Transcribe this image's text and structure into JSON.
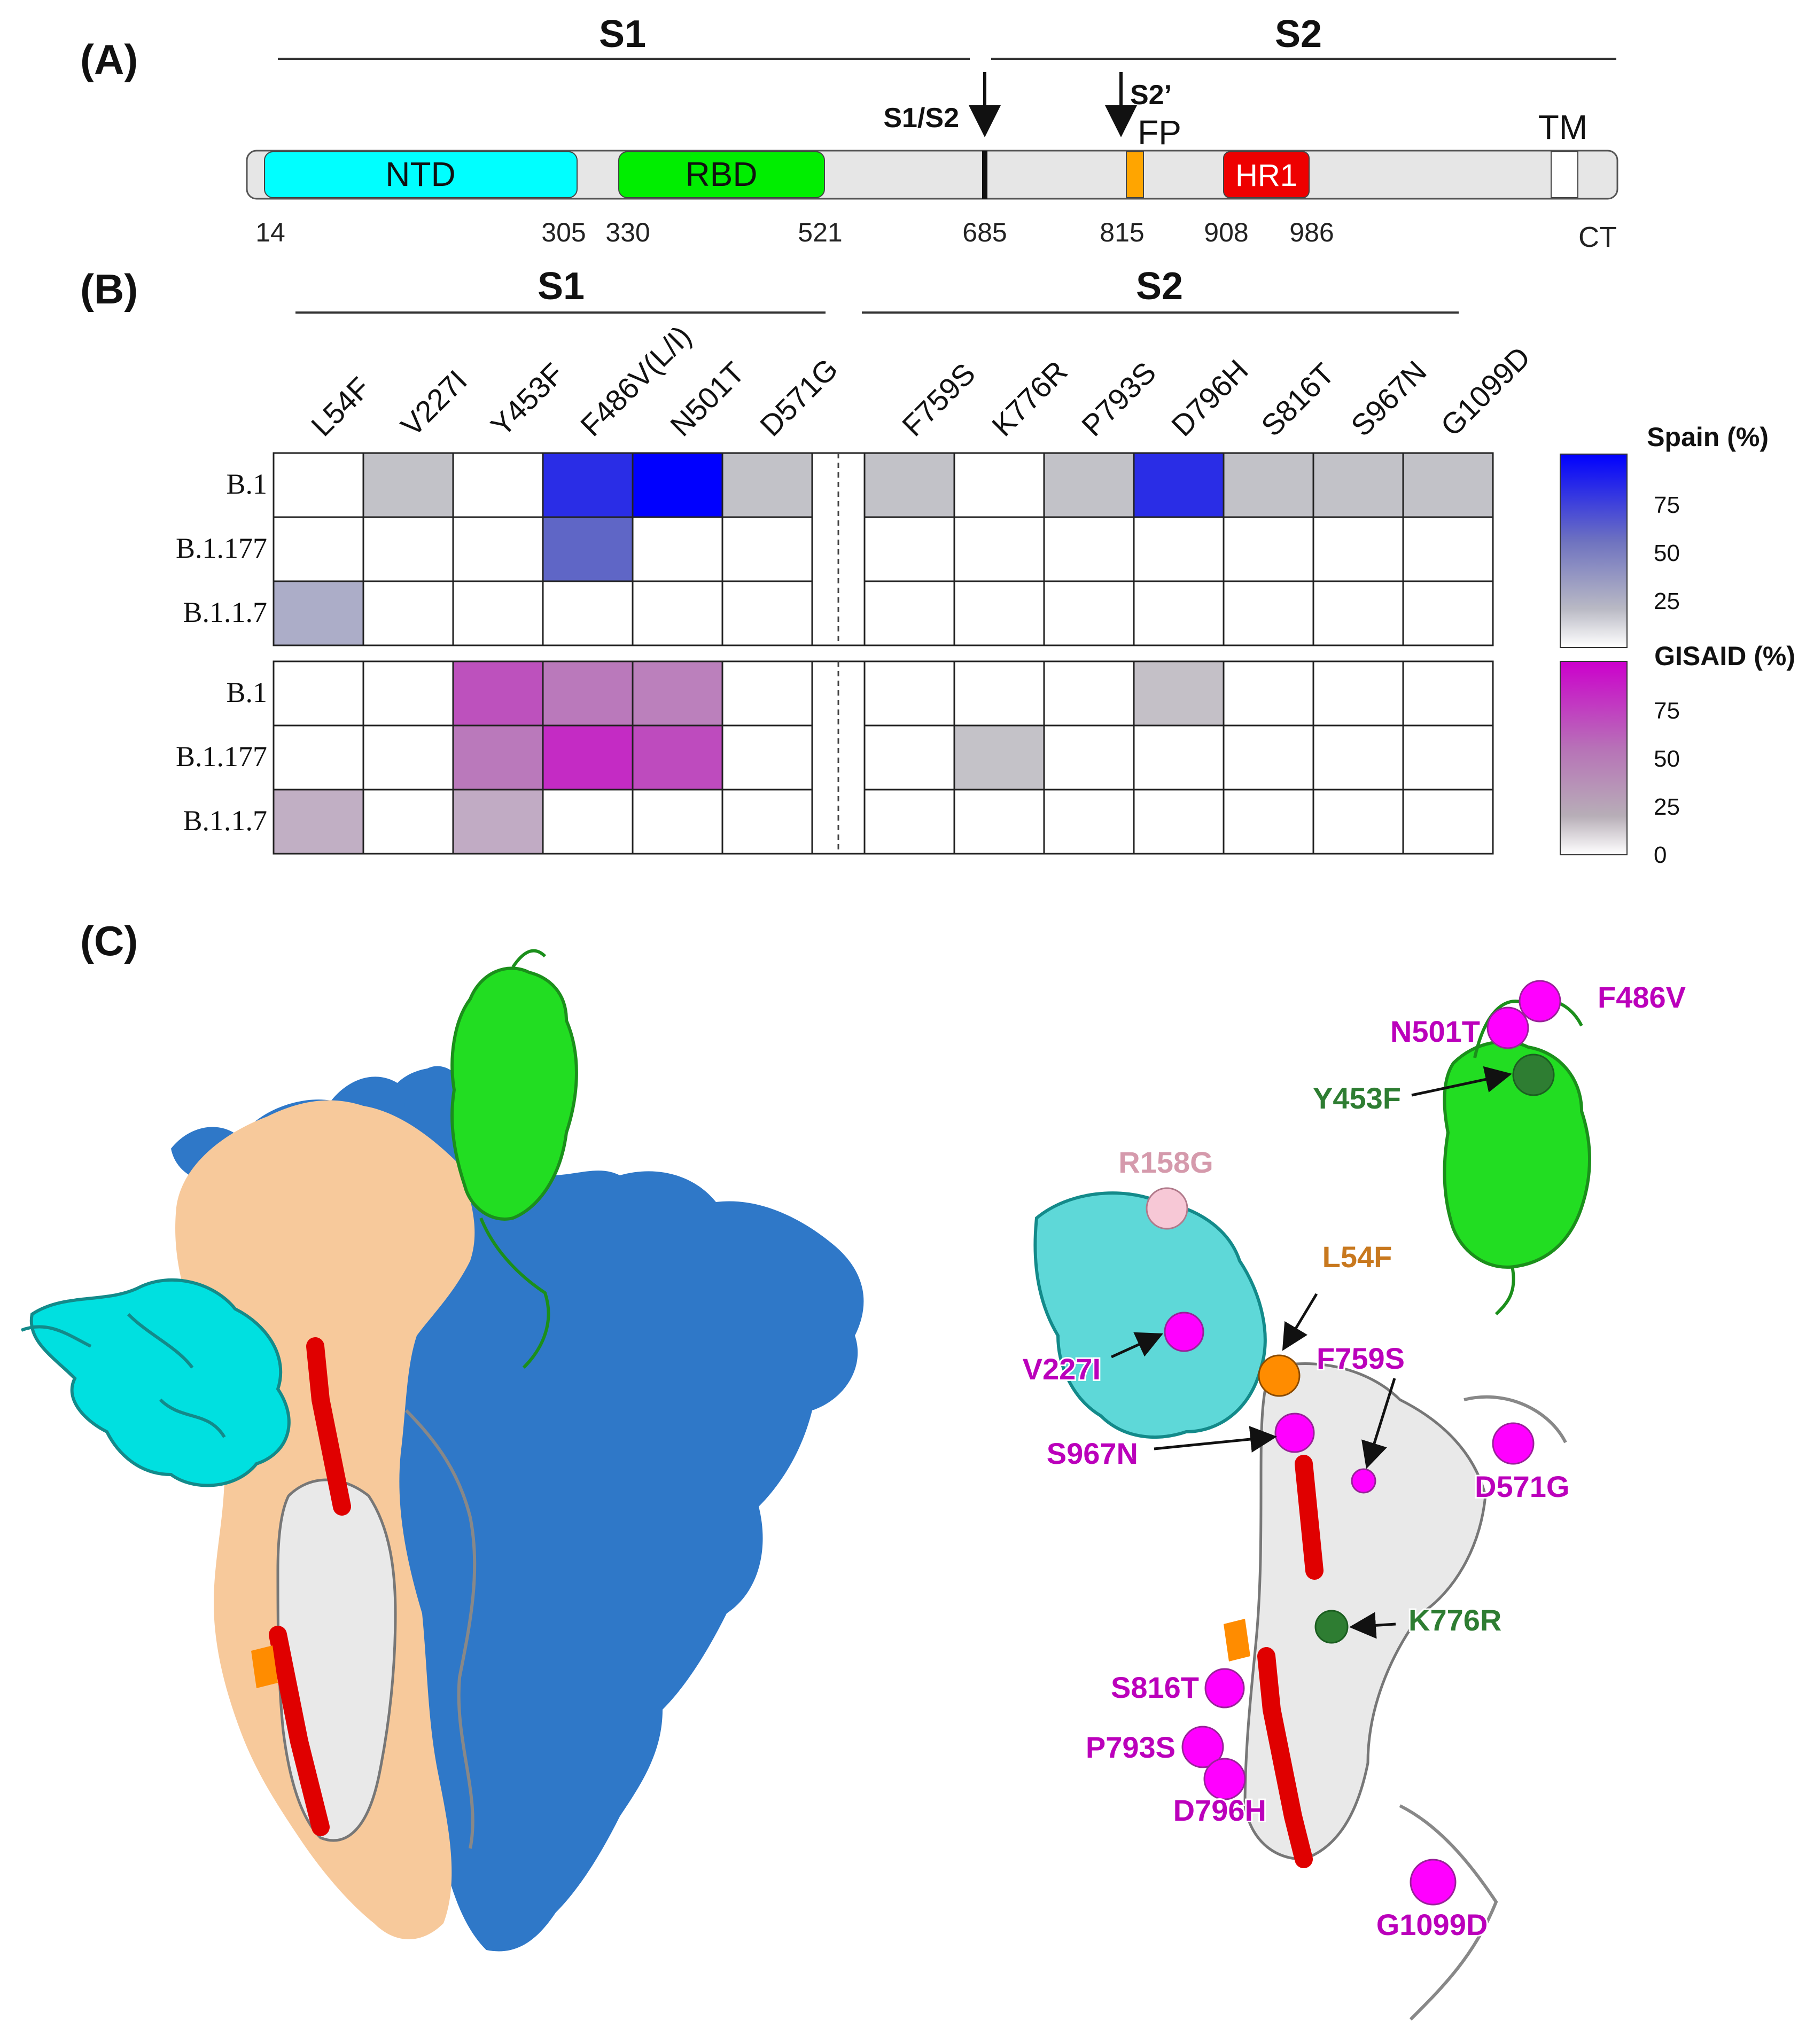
{
  "panels": {
    "a": "(A)",
    "b": "(B)",
    "c": "(C)"
  },
  "domain_map": {
    "segments": [
      "S1",
      "S2"
    ],
    "cleavage": [
      "S1/S2",
      "S2’"
    ],
    "domains": [
      "NTD",
      "RBD",
      "FP",
      "HR1",
      "TM"
    ],
    "positions": [
      "14",
      "305",
      "330",
      "521",
      "685",
      "815",
      "908",
      "986"
    ],
    "ct": "CT"
  },
  "heatmap": {
    "segments": [
      "S1",
      "S2"
    ],
    "columns": [
      "L54F",
      "V227I",
      "Y453F",
      "F486V(L/I)",
      "N501T",
      "D571G",
      "F759S",
      "K776R",
      "P793S",
      "D796H",
      "S816T",
      "S967N",
      "G1099D"
    ],
    "rows": [
      "B.1",
      "B.1.177",
      "B.1.1.7"
    ],
    "spain": [
      [
        0,
        1,
        0,
        78,
        100,
        1,
        1,
        0,
        1,
        78,
        1,
        1,
        1
      ],
      [
        0,
        0,
        0,
        50,
        0,
        0,
        0,
        0,
        0,
        0,
        0,
        0,
        0
      ],
      [
        12,
        0,
        0,
        0,
        0,
        0,
        0,
        0,
        0,
        0,
        0,
        0,
        0
      ]
    ],
    "gisaid": [
      [
        0,
        0,
        62,
        42,
        38,
        0,
        0,
        0,
        0,
        2,
        0,
        0,
        0
      ],
      [
        0,
        0,
        42,
        80,
        65,
        0,
        0,
        1,
        0,
        0,
        0,
        0,
        0
      ],
      [
        12,
        0,
        14,
        0,
        0,
        0,
        0,
        0,
        0,
        0,
        0,
        0,
        0
      ]
    ],
    "colorbar_spain": {
      "title": "Spain (%)",
      "ticks": [
        "75",
        "50",
        "25"
      ]
    },
    "colorbar_gisaid": {
      "title": "GISAID (%)",
      "ticks": [
        "75",
        "50",
        "25",
        "0"
      ]
    }
  },
  "structure": {
    "mutations": [
      {
        "label": "F486V",
        "color": "#bb00bb"
      },
      {
        "label": "N501T",
        "color": "#bb00bb"
      },
      {
        "label": "Y453F",
        "color": "#2e7d32"
      },
      {
        "label": "R158G",
        "color": "#d59aac"
      },
      {
        "label": "L54F",
        "color": "#c8781e"
      },
      {
        "label": "V227I",
        "color": "#bb00bb"
      },
      {
        "label": "F759S",
        "color": "#bb00bb"
      },
      {
        "label": "S967N",
        "color": "#bb00bb"
      },
      {
        "label": "D571G",
        "color": "#bb00bb"
      },
      {
        "label": "K776R",
        "color": "#2e7d32"
      },
      {
        "label": "S816T",
        "color": "#bb00bb"
      },
      {
        "label": "P793S",
        "color": "#bb00bb"
      },
      {
        "label": "D796H",
        "color": "#bb00bb"
      },
      {
        "label": "G1099D",
        "color": "#bb00bb"
      }
    ]
  },
  "colors": {
    "ntd": "#00ffff",
    "rbd": "#00ee00",
    "hr1": "#ee0000",
    "fp": "#ffa500",
    "bar_bg": "#e6e6e6",
    "spain_max": "#0000ff",
    "gisaid_max": "#cc00cc",
    "surface_blue": "#2f78c8",
    "surface_tan": "#f7c99b",
    "mutation_magenta": "#ff00ff"
  }
}
